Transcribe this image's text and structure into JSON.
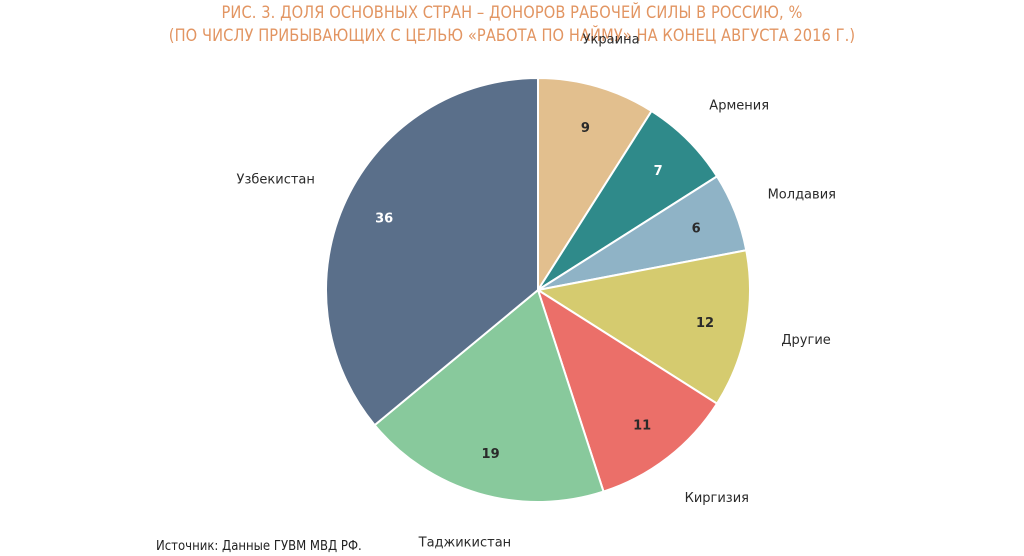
{
  "title_line1": "РИС. 3. ДОЛЯ ОСНОВНЫХ СТРАН – ДОНОРОВ РАБОЧЕЙ СИЛЫ В РОССИЮ, %",
  "title_line2": "(ПО ЧИСЛУ ПРИБЫВАЮЩИХ С ЦЕЛЬЮ «РАБОТА ПО НАЙМУ» НА КОНЕЦ АВГУСТА 2016 Г.)",
  "source": "Источник: Данные ГУВМ МВД РФ.",
  "colors": {
    "title": "#e29562"
  },
  "chart_data": {
    "type": "pie",
    "title": "РИС. 3. ДОЛЯ ОСНОВНЫХ СТРАН – ДОНОРОВ РАБОЧЕЙ СИЛЫ В РОССИЮ, %",
    "subtitle": "(ПО ЧИСЛУ ПРИБЫВАЮЩИХ С ЦЕЛЬЮ «РАБОТА ПО НАЙМУ» НА КОНЕЦ АВГУСТА 2016 Г.)",
    "start": "12 o'clock, clockwise",
    "slices": [
      {
        "label": "Украина",
        "value": 9,
        "color": "#e2bf8e",
        "value_color": "#2a2a2a"
      },
      {
        "label": "Армения",
        "value": 7,
        "color": "#2f8a8a",
        "value_color": "#ffffff"
      },
      {
        "label": "Молдавия",
        "value": 6,
        "color": "#8fb3c6",
        "value_color": "#2a2a2a"
      },
      {
        "label": "Другие",
        "value": 12,
        "color": "#d5cb6f",
        "value_color": "#2a2a2a"
      },
      {
        "label": "Киргизия",
        "value": 11,
        "color": "#eb6f69",
        "value_color": "#2a2a2a"
      },
      {
        "label": "Таджикистан",
        "value": 19,
        "color": "#88c99c",
        "value_color": "#2a2a2a"
      },
      {
        "label": "Узбекистан",
        "value": 36,
        "color": "#5a6f8a",
        "value_color": "#ffffff"
      }
    ]
  }
}
